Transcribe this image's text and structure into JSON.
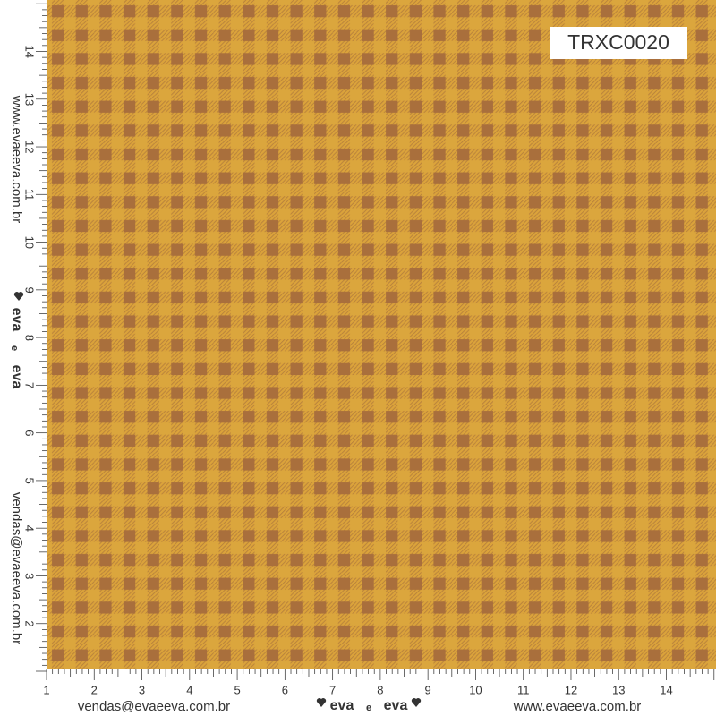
{
  "code": "TRXC0020",
  "left_ruler": {
    "numbers": [
      2,
      3,
      4,
      5,
      6,
      7,
      8,
      9,
      10,
      11,
      12,
      13,
      14
    ],
    "website": "www.evaeeva.com.br",
    "email": "vendas@evaeeva.com.br",
    "logo": [
      "eva",
      "e",
      "eva"
    ]
  },
  "bottom_ruler": {
    "numbers": [
      1,
      2,
      3,
      4,
      5,
      6,
      7,
      8,
      9,
      10,
      11,
      12,
      13,
      14
    ],
    "email": "vendas@evaeeva.com.br",
    "logo": [
      "eva",
      "e",
      "eva"
    ],
    "website": "www.evaeeva.com.br"
  }
}
